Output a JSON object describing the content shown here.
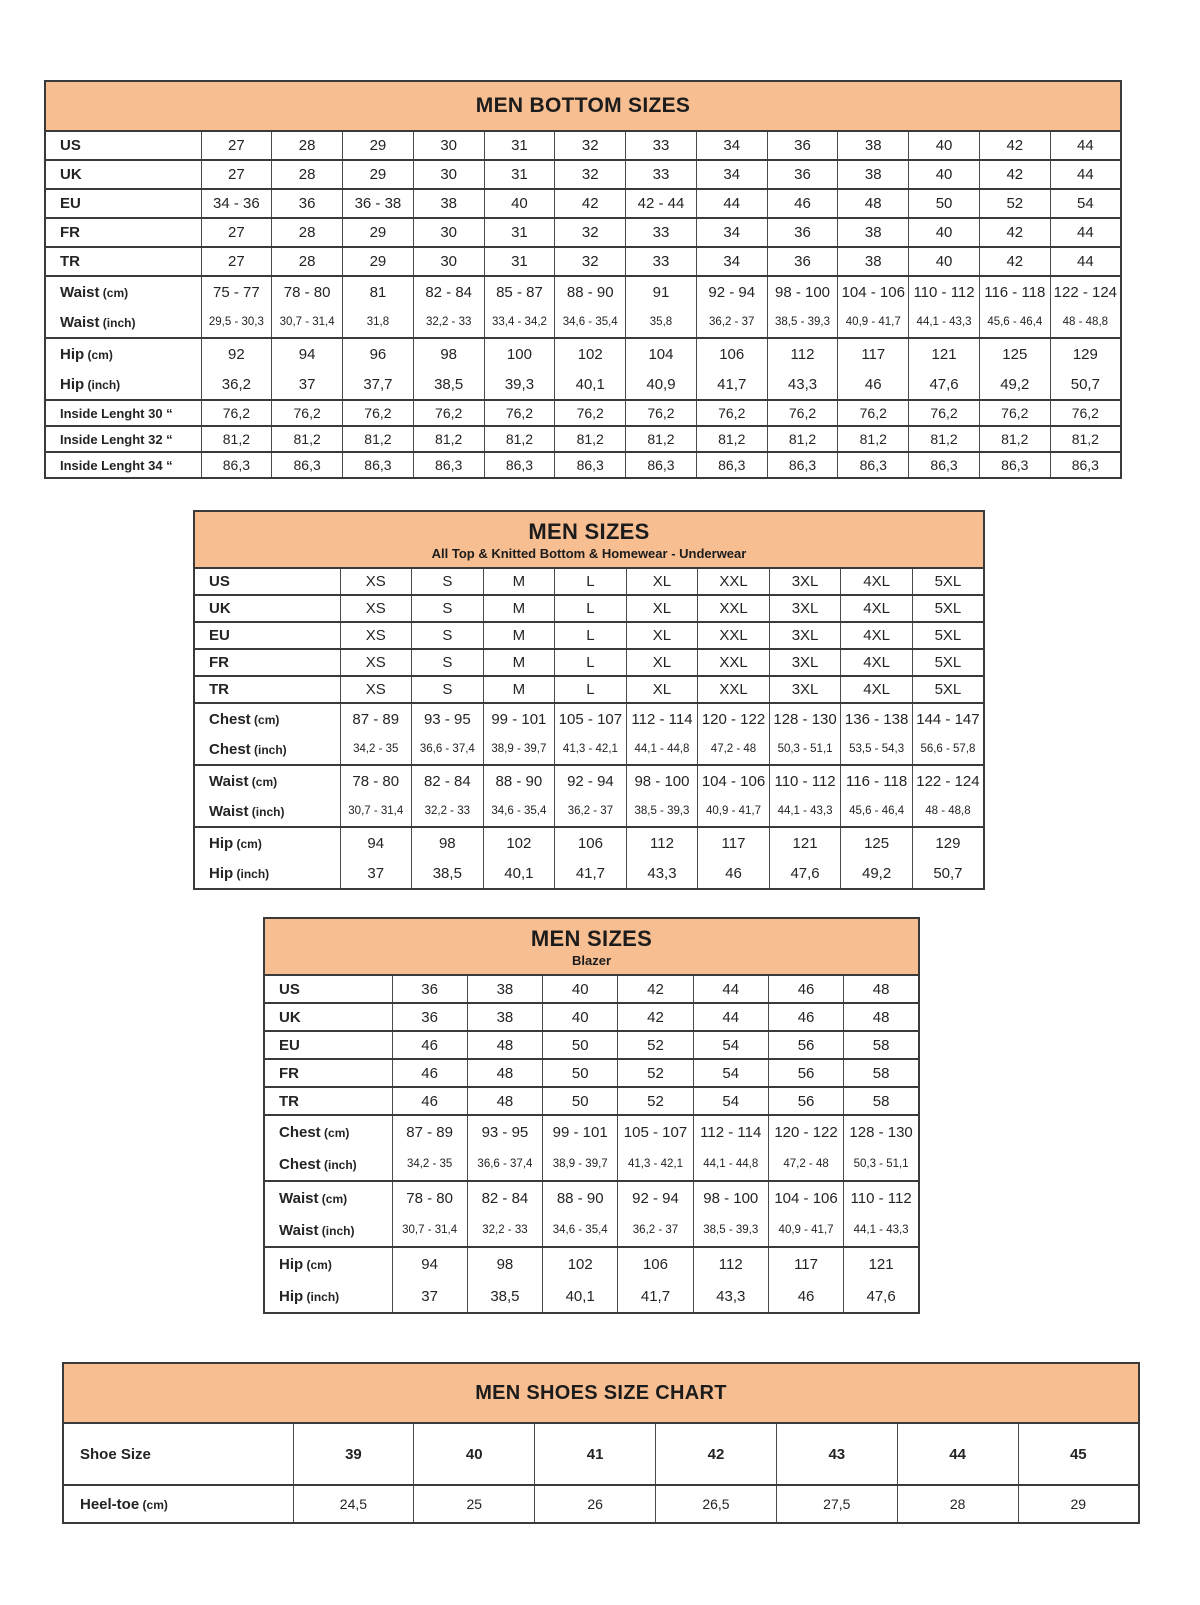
{
  "theme": {
    "accent": "#F7BE92",
    "border_strong": "#3a3a3a",
    "border_thin": "#4a4a4a",
    "text": "#242424",
    "background": "#ffffff"
  },
  "tables": [
    {
      "id": "bottoms",
      "title": "MEN BOTTOM SIZES",
      "subtitle": "",
      "sections": [
        {
          "rows": [
            {
              "label": "US",
              "unit": "",
              "style": "size",
              "cells": [
                "27",
                "28",
                "29",
                "30",
                "31",
                "32",
                "33",
                "34",
                "36",
                "38",
                "40",
                "42",
                "44"
              ]
            }
          ]
        },
        {
          "rows": [
            {
              "label": "UK",
              "unit": "",
              "style": "size",
              "cells": [
                "27",
                "28",
                "29",
                "30",
                "31",
                "32",
                "33",
                "34",
                "36",
                "38",
                "40",
                "42",
                "44"
              ]
            }
          ]
        },
        {
          "rows": [
            {
              "label": "EU",
              "unit": "",
              "style": "size",
              "cells": [
                "34 - 36",
                "36",
                "36 - 38",
                "38",
                "40",
                "42",
                "42 - 44",
                "44",
                "46",
                "48",
                "50",
                "52",
                "54"
              ]
            }
          ]
        },
        {
          "rows": [
            {
              "label": "FR",
              "unit": "",
              "style": "size",
              "cells": [
                "27",
                "28",
                "29",
                "30",
                "31",
                "32",
                "33",
                "34",
                "36",
                "38",
                "40",
                "42",
                "44"
              ]
            }
          ]
        },
        {
          "rows": [
            {
              "label": "TR",
              "unit": "",
              "style": "size",
              "cells": [
                "27",
                "28",
                "29",
                "30",
                "31",
                "32",
                "33",
                "34",
                "36",
                "38",
                "40",
                "42",
                "44"
              ]
            }
          ]
        },
        {
          "rows": [
            {
              "label": "Waist",
              "unit": "(cm)",
              "style": "cm",
              "cells": [
                "75 - 77",
                "78 - 80",
                "81",
                "82 - 84",
                "85 - 87",
                "88 - 90",
                "91",
                "92 - 94",
                "98 - 100",
                "104 - 106",
                "110 - 112",
                "116 - 118",
                "122 - 124"
              ]
            },
            {
              "label": "Waist",
              "unit": "(inch)",
              "style": "inch",
              "cells": [
                "29,5 - 30,3",
                "30,7 - 31,4",
                "31,8",
                "32,2 - 33",
                "33,4 - 34,2",
                "34,6 - 35,4",
                "35,8",
                "36,2 - 37",
                "38,5 - 39,3",
                "40,9 - 41,7",
                "44,1 - 43,3",
                "45,6 - 46,4",
                "48 - 48,8"
              ]
            }
          ]
        },
        {
          "rows": [
            {
              "label": "Hip",
              "unit": "(cm)",
              "style": "cm",
              "cells": [
                "92",
                "94",
                "96",
                "98",
                "100",
                "102",
                "104",
                "106",
                "112",
                "117",
                "121",
                "125",
                "129"
              ]
            },
            {
              "label": "Hip",
              "unit": "(inch)",
              "style": "cm",
              "cells": [
                "36,2",
                "37",
                "37,7",
                "38,5",
                "39,3",
                "40,1",
                "40,9",
                "41,7",
                "43,3",
                "46",
                "47,6",
                "49,2",
                "50,7"
              ]
            }
          ]
        },
        {
          "rows": [
            {
              "label": "Inside Lenght 30 “",
              "unit": "",
              "style": "length",
              "cells": [
                "76,2",
                "76,2",
                "76,2",
                "76,2",
                "76,2",
                "76,2",
                "76,2",
                "76,2",
                "76,2",
                "76,2",
                "76,2",
                "76,2",
                "76,2"
              ]
            }
          ]
        },
        {
          "rows": [
            {
              "label": "Inside Lenght 32 “",
              "unit": "",
              "style": "length",
              "cells": [
                "81,2",
                "81,2",
                "81,2",
                "81,2",
                "81,2",
                "81,2",
                "81,2",
                "81,2",
                "81,2",
                "81,2",
                "81,2",
                "81,2",
                "81,2"
              ]
            }
          ]
        },
        {
          "rows": [
            {
              "label": "Inside Lenght 34 “",
              "unit": "",
              "style": "length",
              "cells": [
                "86,3",
                "86,3",
                "86,3",
                "86,3",
                "86,3",
                "86,3",
                "86,3",
                "86,3",
                "86,3",
                "86,3",
                "86,3",
                "86,3",
                "86,3"
              ]
            }
          ]
        }
      ]
    },
    {
      "id": "tops",
      "title": "MEN SIZES",
      "subtitle": "All Top & Knitted Bottom & Homewear - Underwear",
      "sections": [
        {
          "rows": [
            {
              "label": "US",
              "unit": "",
              "style": "size",
              "cells": [
                "XS",
                "S",
                "M",
                "L",
                "XL",
                "XXL",
                "3XL",
                "4XL",
                "5XL"
              ]
            }
          ]
        },
        {
          "rows": [
            {
              "label": "UK",
              "unit": "",
              "style": "size",
              "cells": [
                "XS",
                "S",
                "M",
                "L",
                "XL",
                "XXL",
                "3XL",
                "4XL",
                "5XL"
              ]
            }
          ]
        },
        {
          "rows": [
            {
              "label": "EU",
              "unit": "",
              "style": "size",
              "cells": [
                "XS",
                "S",
                "M",
                "L",
                "XL",
                "XXL",
                "3XL",
                "4XL",
                "5XL"
              ]
            }
          ]
        },
        {
          "rows": [
            {
              "label": "FR",
              "unit": "",
              "style": "size",
              "cells": [
                "XS",
                "S",
                "M",
                "L",
                "XL",
                "XXL",
                "3XL",
                "4XL",
                "5XL"
              ]
            }
          ]
        },
        {
          "rows": [
            {
              "label": "TR",
              "unit": "",
              "style": "size",
              "cells": [
                "XS",
                "S",
                "M",
                "L",
                "XL",
                "XXL",
                "3XL",
                "4XL",
                "5XL"
              ]
            }
          ]
        },
        {
          "rows": [
            {
              "label": "Chest",
              "unit": "(cm)",
              "style": "cm",
              "cells": [
                "87 - 89",
                "93 - 95",
                "99 - 101",
                "105 - 107",
                "112 - 114",
                "120 - 122",
                "128 - 130",
                "136 - 138",
                "144 - 147"
              ]
            },
            {
              "label": "Chest",
              "unit": "(inch)",
              "style": "inch",
              "cells": [
                "34,2 - 35",
                "36,6 - 37,4",
                "38,9 - 39,7",
                "41,3 - 42,1",
                "44,1 - 44,8",
                "47,2 - 48",
                "50,3 - 51,1",
                "53,5 - 54,3",
                "56,6 - 57,8"
              ]
            }
          ]
        },
        {
          "rows": [
            {
              "label": "Waist",
              "unit": "(cm)",
              "style": "cm",
              "cells": [
                "78 - 80",
                "82 - 84",
                "88 - 90",
                "92 - 94",
                "98 - 100",
                "104 - 106",
                "110 - 112",
                "116 - 118",
                "122 - 124"
              ]
            },
            {
              "label": "Waist",
              "unit": "(inch)",
              "style": "inch",
              "cells": [
                "30,7 - 31,4",
                "32,2 - 33",
                "34,6 - 35,4",
                "36,2 - 37",
                "38,5 - 39,3",
                "40,9 - 41,7",
                "44,1 - 43,3",
                "45,6 - 46,4",
                "48 - 48,8"
              ]
            }
          ]
        },
        {
          "rows": [
            {
              "label": "Hip",
              "unit": "(cm)",
              "style": "cm",
              "cells": [
                "94",
                "98",
                "102",
                "106",
                "112",
                "117",
                "121",
                "125",
                "129"
              ]
            },
            {
              "label": "Hip",
              "unit": "(inch)",
              "style": "cm",
              "cells": [
                "37",
                "38,5",
                "40,1",
                "41,7",
                "43,3",
                "46",
                "47,6",
                "49,2",
                "50,7"
              ]
            }
          ]
        }
      ]
    },
    {
      "id": "blazer",
      "title": "MEN SIZES",
      "subtitle": "Blazer",
      "sections": [
        {
          "rows": [
            {
              "label": "US",
              "unit": "",
              "style": "size",
              "cells": [
                "36",
                "38",
                "40",
                "42",
                "44",
                "46",
                "48"
              ]
            }
          ]
        },
        {
          "rows": [
            {
              "label": "UK",
              "unit": "",
              "style": "size",
              "cells": [
                "36",
                "38",
                "40",
                "42",
                "44",
                "46",
                "48"
              ]
            }
          ]
        },
        {
          "rows": [
            {
              "label": "EU",
              "unit": "",
              "style": "size",
              "cells": [
                "46",
                "48",
                "50",
                "52",
                "54",
                "56",
                "58"
              ]
            }
          ]
        },
        {
          "rows": [
            {
              "label": "FR",
              "unit": "",
              "style": "size",
              "cells": [
                "46",
                "48",
                "50",
                "52",
                "54",
                "56",
                "58"
              ]
            }
          ]
        },
        {
          "rows": [
            {
              "label": "TR",
              "unit": "",
              "style": "size",
              "cells": [
                "46",
                "48",
                "50",
                "52",
                "54",
                "56",
                "58"
              ]
            }
          ]
        },
        {
          "rows": [
            {
              "label": "Chest",
              "unit": "(cm)",
              "style": "cm",
              "cells": [
                "87 - 89",
                "93 - 95",
                "99 - 101",
                "105 - 107",
                "112 - 114",
                "120 - 122",
                "128 - 130"
              ]
            },
            {
              "label": "Chest",
              "unit": "(inch)",
              "style": "inch",
              "cells": [
                "34,2 - 35",
                "36,6 - 37,4",
                "38,9 - 39,7",
                "41,3 - 42,1",
                "44,1 - 44,8",
                "47,2 - 48",
                "50,3 - 51,1"
              ]
            }
          ]
        },
        {
          "rows": [
            {
              "label": "Waist",
              "unit": "(cm)",
              "style": "cm",
              "cells": [
                "78 - 80",
                "82 - 84",
                "88 - 90",
                "92 - 94",
                "98 - 100",
                "104 - 106",
                "110 - 112"
              ]
            },
            {
              "label": "Waist",
              "unit": "(inch)",
              "style": "inch",
              "cells": [
                "30,7 - 31,4",
                "32,2 - 33",
                "34,6 - 35,4",
                "36,2 - 37",
                "38,5 - 39,3",
                "40,9 - 41,7",
                "44,1 - 43,3"
              ]
            }
          ]
        },
        {
          "rows": [
            {
              "label": "Hip",
              "unit": "(cm)",
              "style": "cm",
              "cells": [
                "94",
                "98",
                "102",
                "106",
                "112",
                "117",
                "121"
              ]
            },
            {
              "label": "Hip",
              "unit": "(inch)",
              "style": "cm",
              "cells": [
                "37",
                "38,5",
                "40,1",
                "41,7",
                "43,3",
                "46",
                "47,6"
              ]
            }
          ]
        }
      ]
    },
    {
      "id": "shoes",
      "title": "MEN SHOES SIZE CHART",
      "subtitle": "",
      "sections": [
        {
          "rows": [
            {
              "label": "Shoe Size",
              "unit": "",
              "style": "shoe",
              "cells": [
                "39",
                "40",
                "41",
                "42",
                "43",
                "44",
                "45"
              ]
            }
          ]
        },
        {
          "rows": [
            {
              "label": "Heel-toe",
              "unit": "(cm)",
              "style": "heel",
              "cells": [
                "24,5",
                "25",
                "26",
                "26,5",
                "27,5",
                "28",
                "29"
              ]
            }
          ]
        }
      ]
    }
  ]
}
